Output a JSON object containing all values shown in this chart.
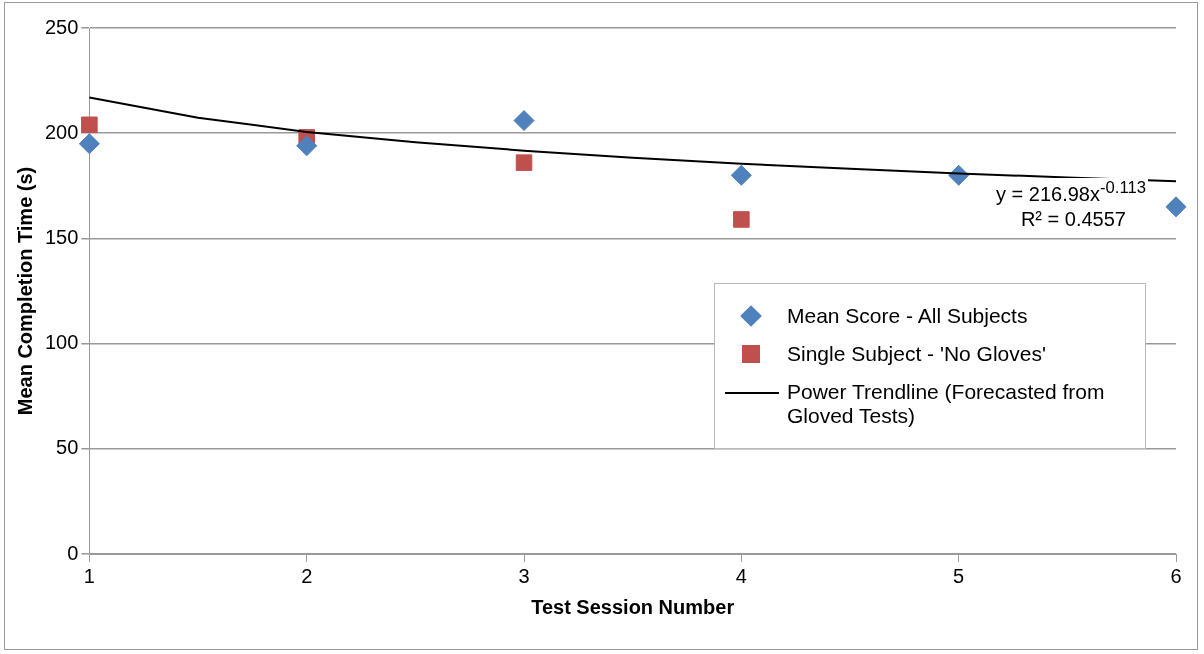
{
  "chart_data": {
    "type": "scatter",
    "xlabel": "Test Session Number",
    "ylabel": "Mean Completion Time (s)",
    "xlim": [
      1,
      6
    ],
    "xticks": [
      1,
      2,
      3,
      4,
      5,
      6
    ],
    "ylim": [
      0,
      250
    ],
    "yticks": [
      0,
      50,
      100,
      150,
      200,
      250
    ],
    "grid": "y",
    "legend": "right",
    "annotations": [
      "y = 216.98x$^{-0.113}$",
      "R² = 0.4557"
    ],
    "series": [
      {
        "name": "Mean Score - All Subjects",
        "marker": "diamond",
        "color": "#4f81bd",
        "x": [
          1,
          2,
          3,
          4,
          5,
          6
        ],
        "values": [
          195,
          194,
          206,
          180,
          180,
          165
        ]
      },
      {
        "name": "Single Subject - 'No Gloves'",
        "marker": "square",
        "color": "#c0504d",
        "x": [
          1,
          2,
          3,
          4
        ],
        "values": [
          204,
          198,
          186,
          159
        ]
      },
      {
        "name": "Power Trendline (Forecasted from Gloved Tests)",
        "type": "line",
        "marker": "none",
        "line_style": "solid",
        "color": "#000000",
        "x": [
          1,
          1.5,
          2,
          2.5,
          3,
          3.5,
          4,
          4.5,
          5,
          5.5,
          6
        ],
        "values": [
          217,
          207.3,
          200.6,
          195.7,
          191.7,
          188.3,
          185.5,
          183.1,
          180.9,
          178.9,
          177.2
        ]
      }
    ]
  }
}
